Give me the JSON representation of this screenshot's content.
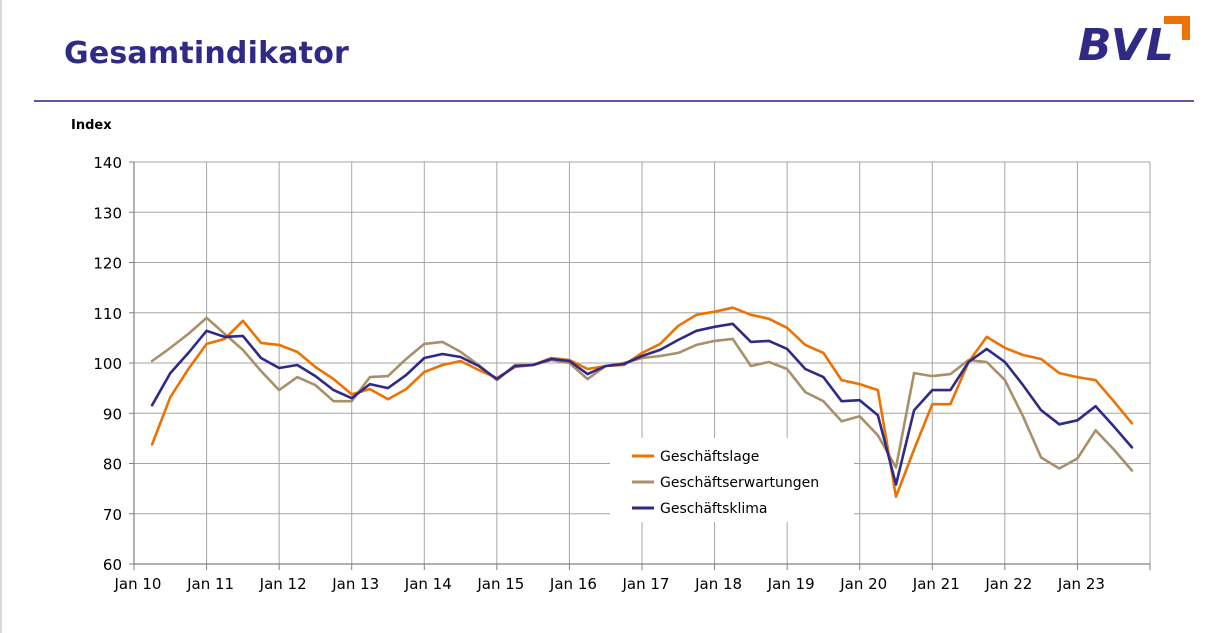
{
  "page": {
    "title": "Gesamtindikator"
  },
  "logo": {
    "text": "BVL",
    "mark_color": "#ee7203",
    "text_color": "#2e2a86"
  },
  "colors": {
    "geschaeftslage": "#ee7203",
    "geschaeftserwartungen": "#a8906a",
    "geschaeftsklima": "#2e2a86"
  },
  "chart_data": {
    "type": "line",
    "title": "",
    "ylabel": "Index",
    "xlabel": "",
    "ylim": [
      60,
      140
    ],
    "yticks": [
      60,
      70,
      80,
      90,
      100,
      110,
      120,
      130,
      140
    ],
    "grid": true,
    "legend_position": "bottom-center",
    "xlim": [
      "Jan 10",
      "Jan 24"
    ],
    "x_ticks": [
      "Jan 10",
      "Jan 11",
      "Jan 12",
      "Jan 13",
      "Jan 14",
      "Jan 15",
      "Jan 16",
      "Jan 17",
      "Jan 18",
      "Jan 19",
      "Jan 20",
      "Jan 21",
      "Jan 22",
      "Jan 23"
    ],
    "x": [
      "Apr 10",
      "Jul 10",
      "Okt 10",
      "Jan 11",
      "Apr 11",
      "Jul 11",
      "Okt 11",
      "Jan 12",
      "Apr 12",
      "Jul 12",
      "Okt 12",
      "Jan 13",
      "Apr 13",
      "Jul 13",
      "Okt 13",
      "Jan 14",
      "Apr 14",
      "Jul 14",
      "Okt 14",
      "Jan 15",
      "Apr 15",
      "Jul 15",
      "Okt 15",
      "Jan 16",
      "Apr 16",
      "Jul 16",
      "Okt 16",
      "Jan 17",
      "Apr 17",
      "Jul 17",
      "Okt 17",
      "Jan 18",
      "Apr 18",
      "Jul 18",
      "Okt 18",
      "Jan 19",
      "Apr 19",
      "Jul 19",
      "Okt 19",
      "Jan 20",
      "Apr 20",
      "Jul 20",
      "Okt 20",
      "Jan 21",
      "Apr 21",
      "Jul 21",
      "Okt 21",
      "Jan 22",
      "Apr 22",
      "Jul 22",
      "Okt 22",
      "Jan 23",
      "Apr 23",
      "Jul 23",
      "Okt 23"
    ],
    "series": [
      {
        "name": "Geschäftslage",
        "color": "#ee7203",
        "values": [
          83.8,
          93.2,
          98.8,
          103.8,
          104.8,
          108.4,
          104.0,
          103.6,
          102.2,
          99.2,
          96.8,
          93.8,
          94.8,
          92.8,
          94.8,
          98.2,
          99.6,
          100.4,
          98.6,
          97.0,
          99.2,
          99.6,
          101.0,
          100.6,
          98.8,
          99.4,
          99.6,
          102.0,
          103.8,
          107.4,
          109.6,
          110.2,
          111.0,
          109.6,
          108.8,
          107.0,
          103.6,
          102.0,
          96.6,
          95.8,
          94.6,
          73.4,
          82.8,
          91.8,
          91.8,
          100.2,
          105.2,
          103.0,
          101.6,
          100.8,
          98.0,
          97.2,
          96.6,
          92.4,
          88.0
        ]
      },
      {
        "name": "Geschäftserwartungen",
        "color": "#a8906a",
        "values": [
          100.4,
          103.0,
          105.8,
          109.0,
          105.8,
          102.6,
          98.4,
          94.6,
          97.2,
          95.6,
          92.4,
          92.4,
          97.2,
          97.4,
          100.8,
          103.8,
          104.2,
          102.2,
          99.6,
          96.6,
          99.6,
          99.6,
          100.6,
          100.0,
          96.8,
          99.4,
          100.0,
          101.0,
          101.4,
          102.0,
          103.6,
          104.4,
          104.8,
          99.4,
          100.2,
          98.8,
          94.2,
          92.4,
          88.4,
          89.4,
          85.6,
          79.2,
          98.0,
          97.4,
          97.8,
          100.6,
          100.2,
          96.6,
          89.4,
          81.2,
          79.0,
          81.0,
          86.6,
          82.8,
          78.6
        ]
      },
      {
        "name": "Geschäftsklima",
        "color": "#2e2a86",
        "values": [
          91.6,
          98.0,
          102.0,
          106.4,
          105.2,
          105.4,
          101.0,
          99.0,
          99.6,
          97.4,
          94.6,
          93.0,
          95.8,
          95.0,
          97.6,
          101.0,
          101.8,
          101.2,
          99.4,
          96.8,
          99.4,
          99.6,
          100.8,
          100.4,
          97.8,
          99.4,
          99.8,
          101.4,
          102.6,
          104.6,
          106.4,
          107.2,
          107.8,
          104.2,
          104.4,
          102.8,
          98.8,
          97.2,
          92.4,
          92.6,
          89.6,
          75.8,
          90.6,
          94.6,
          94.6,
          100.2,
          102.8,
          100.2,
          95.6,
          90.6,
          87.8,
          88.6,
          91.4,
          87.4,
          83.2
        ]
      }
    ]
  }
}
